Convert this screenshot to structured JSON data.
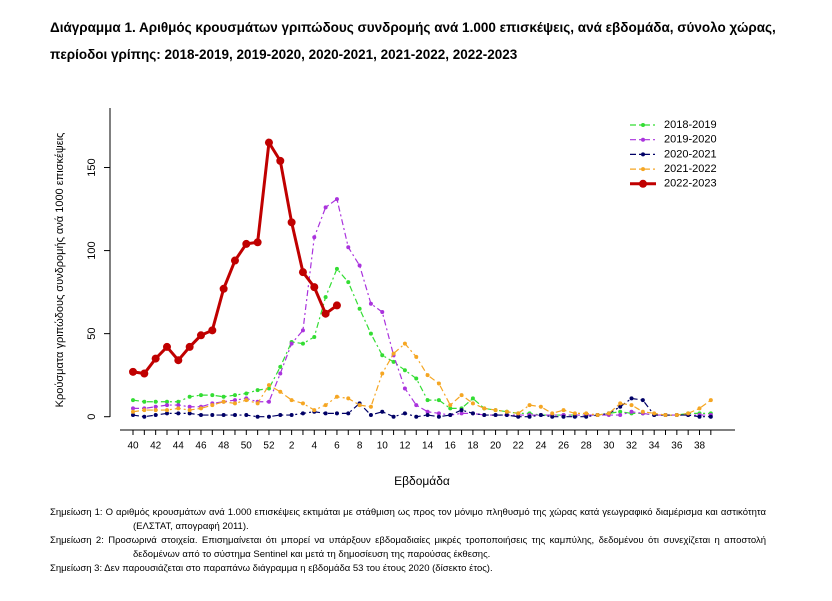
{
  "chart_data": {
    "type": "line",
    "title": "Διάγραμμα 1. Αριθμός κρουσμάτων γριπώδους συνδρομής ανά 1.000 επισκέψεις, ανά εβδομάδα, σύνολο χώρας, περίοδοι γρίπης: 2018-2019, 2019-2020, 2020-2021, 2021-2022, 2022-2023",
    "x_label": "Εβδομάδα",
    "y_label": "Κρούσματα γριπώδους συνδρομής ανά 1000 επισκέψεις",
    "categories": [
      40,
      null,
      42,
      null,
      44,
      null,
      46,
      null,
      48,
      null,
      50,
      null,
      52,
      null,
      2,
      null,
      4,
      null,
      6,
      null,
      8,
      null,
      10,
      null,
      12,
      null,
      14,
      null,
      16,
      null,
      18,
      null,
      20,
      null,
      22,
      null,
      24,
      null,
      26,
      null,
      28,
      null,
      30,
      null,
      32,
      null,
      34,
      null,
      36,
      null,
      38,
      null
    ],
    "ylim": [
      -8,
      178
    ],
    "yticks": [
      0,
      50,
      100,
      150
    ],
    "grid": false,
    "legend": "topright",
    "series": [
      {
        "name": "2018-2019",
        "color": "#33dd33",
        "values": [
          10,
          9,
          9,
          9,
          9,
          12,
          13,
          13,
          12,
          13,
          14,
          16,
          17,
          30,
          45,
          44,
          48,
          72,
          89,
          81,
          65,
          50,
          37,
          33,
          28,
          23,
          10,
          10,
          5,
          5,
          11,
          5,
          4,
          3,
          2,
          2,
          1,
          1,
          1,
          1,
          1,
          1,
          2,
          3,
          2,
          2,
          1,
          1,
          1,
          2,
          2,
          2
        ]
      },
      {
        "name": "2019-2020",
        "color": "#aa33dd",
        "values": [
          5,
          5,
          6,
          7,
          7,
          6,
          6,
          8,
          9,
          10,
          11,
          9,
          9,
          26,
          44,
          52,
          108,
          126,
          131,
          102,
          91,
          68,
          63,
          37,
          17,
          7,
          3,
          2,
          1,
          2,
          2,
          1,
          1,
          1,
          1,
          1,
          1,
          1,
          1,
          1,
          1,
          1,
          1,
          1,
          3,
          2,
          1,
          1,
          1,
          1,
          1,
          1
        ]
      },
      {
        "name": "2020-2021",
        "color": "#000066",
        "values": [
          1,
          0,
          1,
          2,
          2,
          2,
          1,
          1,
          1,
          1,
          1,
          0,
          0,
          1,
          1,
          2,
          3,
          2,
          2,
          2,
          8,
          1,
          3,
          0,
          2,
          0,
          1,
          0,
          1,
          4,
          2,
          1,
          1,
          1,
          0,
          0,
          1,
          0,
          0,
          0,
          0,
          1,
          2,
          6,
          11,
          10,
          1,
          1,
          1,
          1,
          0,
          0
        ]
      },
      {
        "name": "2021-2022",
        "color": "#f5a623",
        "values": [
          3,
          4,
          4,
          4,
          5,
          4,
          5,
          7,
          9,
          8,
          10,
          8,
          19,
          15,
          10,
          8,
          4,
          7,
          12,
          11,
          7,
          6,
          26,
          38,
          44,
          36,
          25,
          20,
          7,
          13,
          8,
          5,
          4,
          3,
          2,
          7,
          6,
          2,
          4,
          2,
          2,
          1,
          2,
          8,
          7,
          3,
          2,
          1,
          1,
          2,
          5,
          10
        ]
      },
      {
        "name": "2022-2023",
        "color": "#c00000",
        "values": [
          27,
          26,
          35,
          42,
          34,
          42,
          49,
          52,
          77,
          94,
          104,
          105,
          165,
          154,
          117,
          87,
          78,
          62,
          67,
          null,
          null,
          null,
          null,
          null,
          null,
          null,
          null,
          null,
          null,
          null,
          null,
          null,
          null,
          null,
          null,
          null,
          null,
          null,
          null,
          null,
          null,
          null,
          null,
          null,
          null,
          null,
          null,
          null,
          null,
          null,
          null,
          null
        ]
      }
    ]
  },
  "notes": [
    {
      "label": "Σημείωση 1:",
      "text": "Ο αριθμός κρουσμάτων ανά 1.000 επισκέψεις εκτιμάται με στάθμιση ως προς τον μόνιμο πληθυσμό της χώρας κατά γεωγραφικό διαμέρισμα και αστικότητα (ΕΛΣΤΑΤ, απογραφή 2011)."
    },
    {
      "label": "Σημείωση 2:",
      "text": "Προσωρινά στοιχεία. Επισημαίνεται ότι μπορεί να υπάρξουν εβδομαδιαίες μικρές τροποποιήσεις της καμπύλης, δεδομένου ότι συνεχίζεται η αποστολή δεδομένων από το σύστημα Sentinel και μετά τη δημοσίευση της παρούσας έκθεσης."
    },
    {
      "label": "Σημείωση 3:",
      "text": "Δεν παρουσιάζεται στο παραπάνω διάγραμμα η εβδομάδα 53 του έτους 2020 (δίσεκτο έτος)."
    }
  ]
}
